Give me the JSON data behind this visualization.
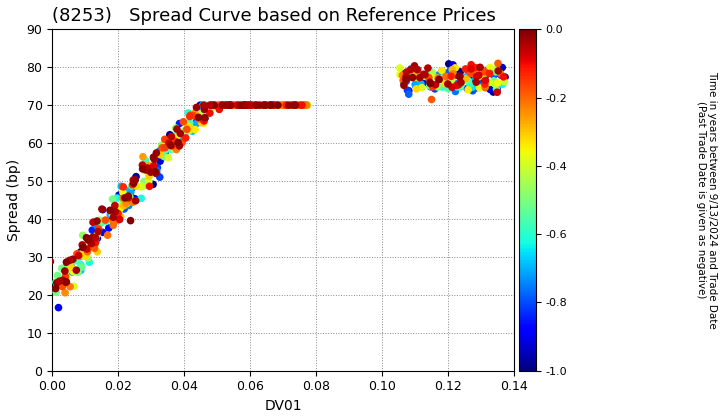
{
  "title": "(8253)   Spread Curve based on Reference Prices",
  "xlabel": "DV01",
  "ylabel": "Spread (bp)",
  "xlim": [
    0.0,
    0.14
  ],
  "ylim": [
    0,
    90
  ],
  "xticks": [
    0.0,
    0.02,
    0.04,
    0.06,
    0.08,
    0.1,
    0.12,
    0.14
  ],
  "yticks": [
    0,
    10,
    20,
    30,
    40,
    50,
    60,
    70,
    80,
    90
  ],
  "colorbar_label_line1": "Time in years between 9/13/2024 and Trade Date",
  "colorbar_label_line2": "(Past Trade Date is given as negative)",
  "cmap": "jet",
  "vmin": -1.0,
  "vmax": 0.0,
  "cbar_ticks": [
    0.0,
    -0.2,
    -0.4,
    -0.6,
    -0.8,
    -1.0
  ],
  "background_color": "#ffffff",
  "grid_color": "#888888",
  "title_fontsize": 13,
  "axis_fontsize": 10,
  "marker_size": 30
}
